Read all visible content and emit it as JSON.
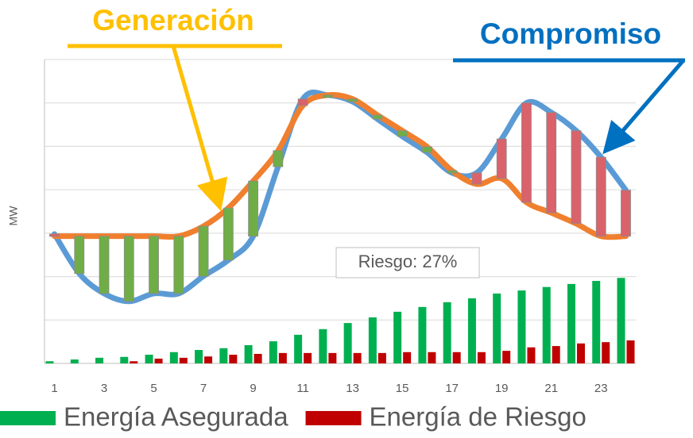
{
  "chart_data": {
    "type": "line",
    "y_label": "MW",
    "x": [
      1,
      2,
      3,
      4,
      5,
      6,
      7,
      8,
      9,
      10,
      11,
      12,
      13,
      14,
      15,
      16,
      17,
      18,
      19,
      20,
      21,
      22,
      23,
      24
    ],
    "xlim": [
      0.6,
      24.4
    ],
    "xticks": [
      1,
      3,
      5,
      7,
      9,
      11,
      13,
      15,
      17,
      19,
      21,
      23
    ],
    "ylim": [
      0,
      70
    ],
    "yticks": [
      0,
      10,
      20,
      30,
      40,
      50,
      60,
      70
    ],
    "grid": true,
    "series": [
      {
        "name": "Generación",
        "color": "#f07f2e",
        "values": [
          29.3,
          29.3,
          29.3,
          29.3,
          29.3,
          29.3,
          31.6,
          35.8,
          42.0,
          49.0,
          59.4,
          61.8,
          60.9,
          57.2,
          53.6,
          49.9,
          44.4,
          41.3,
          42.6,
          37.1,
          34.7,
          32.2,
          29.3,
          29.3
        ]
      },
      {
        "name": "Compromiso",
        "color": "#5b9bd5",
        "values": [
          29.8,
          20.7,
          16.1,
          14.3,
          16.1,
          16.1,
          20.1,
          23.8,
          29.3,
          45.3,
          60.9,
          61.8,
          60.3,
          56.3,
          52.3,
          48.6,
          43.9,
          43.9,
          51.7,
          60.0,
          57.8,
          53.6,
          47.5,
          39.9
        ]
      }
    ],
    "band_colors": {
      "surplus": "#70ad47",
      "deficit": "#d9626b"
    },
    "bars": [
      {
        "name": "Energía Asegurada",
        "color": "#00b050",
        "values": [
          0.5,
          0.9,
          1.3,
          1.5,
          2.0,
          2.6,
          3.1,
          3.5,
          4.2,
          5.1,
          6.6,
          7.9,
          9.3,
          10.6,
          11.9,
          13.0,
          14.1,
          15.0,
          16.1,
          16.8,
          17.6,
          18.3,
          19.0,
          19.7
        ]
      },
      {
        "name": "Energía de Riesgo",
        "color": "#c00000",
        "values": [
          0,
          0,
          0,
          0.5,
          1.1,
          1.3,
          1.6,
          2.0,
          2.2,
          2.4,
          2.4,
          2.4,
          2.4,
          2.4,
          2.6,
          2.6,
          2.6,
          2.6,
          2.9,
          3.7,
          4.0,
          4.6,
          4.9,
          5.3
        ]
      }
    ],
    "annotation": "Riesgo: 27%"
  }
}
